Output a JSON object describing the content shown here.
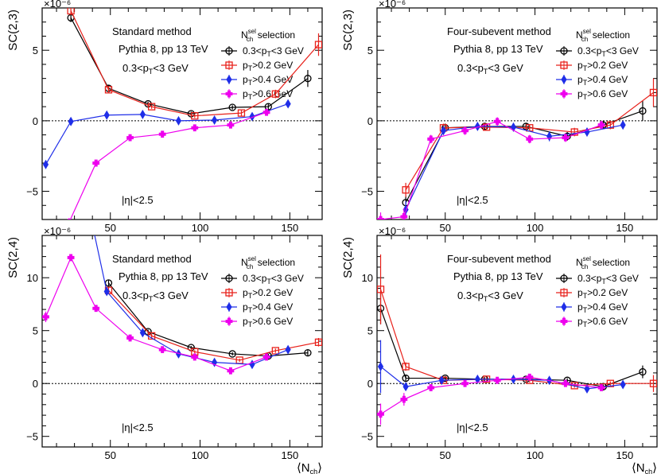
{
  "legend_title": {
    "main": "N",
    "sup": "sel",
    "sub": "ch",
    "rest": " selection"
  },
  "colors": {
    "black": "#000000",
    "red": "#e8211b",
    "blue": "#1f2ee8",
    "magenta": "#ee00ee"
  },
  "chart_data": [
    {
      "type": "line",
      "panel": "top-left",
      "ylabel": "SC(2,3)",
      "exponent_label": "×10⁻⁶",
      "xlabel": "",
      "xlim": [
        12,
        168
      ],
      "ylim": [
        -7,
        8
      ],
      "xticks": [
        50,
        100,
        150
      ],
      "yticks": [
        -5,
        0,
        5
      ],
      "method_label": "Standard method",
      "system_label": "Pythia 8, pp 13 TeV",
      "pt_label": "0.3<p_T<3 GeV",
      "eta_label": "|η|<2.5",
      "series": [
        {
          "name": "0.3<p_T<3 GeV",
          "color": "black",
          "marker": "circle",
          "x": [
            28,
            49,
            71,
            95,
            118,
            138,
            160
          ],
          "y": [
            7.3,
            2.3,
            1.2,
            0.5,
            0.95,
            1.0,
            3.0
          ],
          "err": [
            0.3,
            0.2,
            0.15,
            0.15,
            0.15,
            0.2,
            0.6
          ]
        },
        {
          "name": "p_T>0.2 GeV",
          "color": "red",
          "marker": "square",
          "x": [
            28,
            49,
            73,
            97,
            123,
            142,
            166
          ],
          "y": [
            7.8,
            2.2,
            1.0,
            0.35,
            0.55,
            1.9,
            5.4
          ],
          "err": [
            0.3,
            0.2,
            0.15,
            0.15,
            0.2,
            0.3,
            0.8
          ]
        },
        {
          "name": "p_T>0.4 GeV",
          "color": "blue",
          "marker": "diamond",
          "x": [
            14,
            28,
            48,
            68,
            88,
            108,
            129,
            149
          ],
          "y": [
            -3.1,
            -0.05,
            0.4,
            0.45,
            0.0,
            0.05,
            0.3,
            1.2
          ],
          "err": [
            0.3,
            0.1,
            0.1,
            0.1,
            0.1,
            0.1,
            0.15,
            0.2
          ]
        },
        {
          "name": "p_T>0.6 GeV",
          "color": "magenta",
          "marker": "star",
          "x": [
            27,
            42,
            61,
            79,
            97,
            117,
            137
          ],
          "y": [
            -7.2,
            -3.0,
            -1.2,
            -0.95,
            -0.5,
            -0.3,
            0.6
          ],
          "err": [
            0.3,
            0.2,
            0.15,
            0.15,
            0.15,
            0.15,
            0.2
          ]
        }
      ]
    },
    {
      "type": "line",
      "panel": "top-right",
      "ylabel": "SC(2,3)",
      "exponent_label": "×10⁻⁶",
      "xlabel": "",
      "xlim": [
        12,
        168
      ],
      "ylim": [
        -7,
        8
      ],
      "xticks": [
        50,
        100,
        150
      ],
      "yticks": [
        -5,
        0,
        5
      ],
      "method_label": "Four-subevent method",
      "system_label": "Pythia 8, pp 13 TeV",
      "pt_label": "0.3<p_T<3 GeV",
      "eta_label": "|η|<2.5",
      "series": [
        {
          "name": "0.3<p_T<3 GeV",
          "color": "black",
          "marker": "circle",
          "x": [
            28,
            50,
            72,
            95,
            118,
            138,
            160
          ],
          "y": [
            -5.8,
            -0.5,
            -0.4,
            -0.4,
            -1.1,
            -0.3,
            0.7
          ],
          "err": [
            0.5,
            0.3,
            0.2,
            0.2,
            0.3,
            0.3,
            0.7
          ]
        },
        {
          "name": "p_T>0.2 GeV",
          "color": "red",
          "marker": "square",
          "x": [
            28,
            49,
            73,
            97,
            122,
            142,
            166
          ],
          "y": [
            -4.9,
            -0.5,
            -0.45,
            -0.5,
            -0.8,
            -0.3,
            2.0
          ],
          "err": [
            0.5,
            0.3,
            0.2,
            0.2,
            0.3,
            0.3,
            1.0
          ]
        },
        {
          "name": "p_T>0.4 GeV",
          "color": "blue",
          "marker": "diamond",
          "x": [
            28,
            49,
            68,
            88,
            108,
            129,
            149
          ],
          "y": [
            -6.3,
            -0.7,
            -0.4,
            -0.45,
            -1.1,
            -0.8,
            -0.3
          ],
          "err": [
            0.6,
            0.3,
            0.2,
            0.3,
            0.35,
            0.3,
            0.3
          ]
        },
        {
          "name": "p_T>0.6 GeV",
          "color": "magenta",
          "marker": "star",
          "x": [
            14,
            27,
            42,
            61,
            79,
            97,
            117,
            137
          ],
          "y": [
            -7.0,
            -6.8,
            -1.3,
            -0.7,
            -0.05,
            -1.3,
            -1.2,
            -0.3
          ],
          "err": [
            0.5,
            0.6,
            0.3,
            0.3,
            0.3,
            0.3,
            0.3,
            0.3
          ]
        }
      ]
    },
    {
      "type": "line",
      "panel": "bottom-left",
      "ylabel": "SC(2,4)",
      "exponent_label": "×10⁻⁶",
      "xlabel": "⟨N_ch⟩",
      "xlim": [
        12,
        168
      ],
      "ylim": [
        -6,
        14
      ],
      "xticks": [
        50,
        100,
        150
      ],
      "yticks": [
        -5,
        0,
        5,
        10
      ],
      "method_label": "Standard method",
      "system_label": "Pythia 8, pp 13 TeV",
      "pt_label": "0.3<p_T<3 GeV",
      "eta_label": "|η|<2.5",
      "series": [
        {
          "name": "0.3<p_T<3 GeV",
          "color": "black",
          "marker": "circle",
          "x": [
            49,
            71,
            95,
            118,
            138,
            160
          ],
          "y": [
            9.5,
            4.9,
            3.4,
            2.8,
            2.6,
            2.9
          ],
          "err": [
            0.3,
            0.2,
            0.15,
            0.15,
            0.2,
            0.3
          ]
        },
        {
          "name": "p_T>0.2 GeV",
          "color": "red",
          "marker": "square",
          "x": [
            49,
            73,
            97,
            122,
            142,
            166
          ],
          "y": [
            8.8,
            4.5,
            3.0,
            2.2,
            3.1,
            3.9
          ],
          "err": [
            0.3,
            0.2,
            0.15,
            0.15,
            0.2,
            0.4
          ]
        },
        {
          "name": "p_T>0.4 GeV",
          "color": "blue",
          "marker": "diamond",
          "x": [
            40,
            48,
            68,
            88,
            108,
            129,
            149
          ],
          "y": [
            15,
            8.7,
            4.8,
            2.8,
            2.0,
            1.8,
            3.2
          ],
          "err": [
            0.5,
            0.3,
            0.2,
            0.2,
            0.2,
            0.2,
            0.3
          ]
        },
        {
          "name": "p_T>0.6 GeV",
          "color": "magenta",
          "marker": "star",
          "x": [
            14,
            28,
            42,
            61,
            79,
            97,
            117,
            137
          ],
          "y": [
            6.3,
            11.9,
            7.1,
            4.3,
            3.2,
            2.5,
            1.2,
            2.5
          ],
          "err": [
            0.5,
            0.3,
            0.2,
            0.2,
            0.2,
            0.2,
            0.2,
            0.2
          ]
        }
      ]
    },
    {
      "type": "line",
      "panel": "bottom-right",
      "ylabel": "SC(2,4)",
      "exponent_label": "×10⁻⁶",
      "xlabel": "⟨N_ch⟩",
      "xlim": [
        12,
        168
      ],
      "ylim": [
        -6,
        14
      ],
      "xticks": [
        50,
        100,
        150
      ],
      "yticks": [
        -5,
        0,
        5,
        10
      ],
      "method_label": "Four-subevent method",
      "system_label": "Pythia 8, pp 13 TeV",
      "pt_label": "0.3<p_T<3 GeV",
      "eta_label": "|η|<2.5",
      "series": [
        {
          "name": "0.3<p_T<3 GeV",
          "color": "black",
          "marker": "circle",
          "x": [
            14,
            28,
            50,
            72,
            95,
            118,
            138,
            160
          ],
          "y": [
            7.1,
            0.5,
            0.5,
            0.4,
            0.4,
            0.3,
            -0.3,
            1.1
          ],
          "err": [
            1.5,
            0.3,
            0.2,
            0.2,
            0.2,
            0.2,
            0.2,
            0.6
          ]
        },
        {
          "name": "p_T>0.2 GeV",
          "color": "red",
          "marker": "square",
          "x": [
            14,
            28,
            49,
            73,
            97,
            122,
            142,
            166
          ],
          "y": [
            8.9,
            1.6,
            0.3,
            0.4,
            0.3,
            -0.2,
            0.0,
            0.0
          ],
          "err": [
            3.3,
            0.4,
            0.2,
            0.2,
            0.2,
            0.2,
            0.2,
            0.8
          ]
        },
        {
          "name": "p_T>0.4 GeV",
          "color": "blue",
          "marker": "diamond",
          "x": [
            14,
            28,
            48,
            68,
            88,
            108,
            129,
            149
          ],
          "y": [
            1.6,
            -0.3,
            0.3,
            0.4,
            0.4,
            0.3,
            -0.5,
            -0.1
          ],
          "err": [
            2.5,
            0.3,
            0.2,
            0.2,
            0.2,
            0.2,
            0.2,
            0.2
          ]
        },
        {
          "name": "p_T>0.6 GeV",
          "color": "magenta",
          "marker": "star",
          "x": [
            14,
            27,
            42,
            61,
            79,
            97,
            117,
            137
          ],
          "y": [
            -2.9,
            -1.5,
            -0.4,
            0.0,
            0.3,
            0.6,
            0.0,
            -0.4
          ],
          "err": [
            1.0,
            0.6,
            0.3,
            0.2,
            0.2,
            0.3,
            0.2,
            0.2
          ]
        }
      ]
    }
  ]
}
